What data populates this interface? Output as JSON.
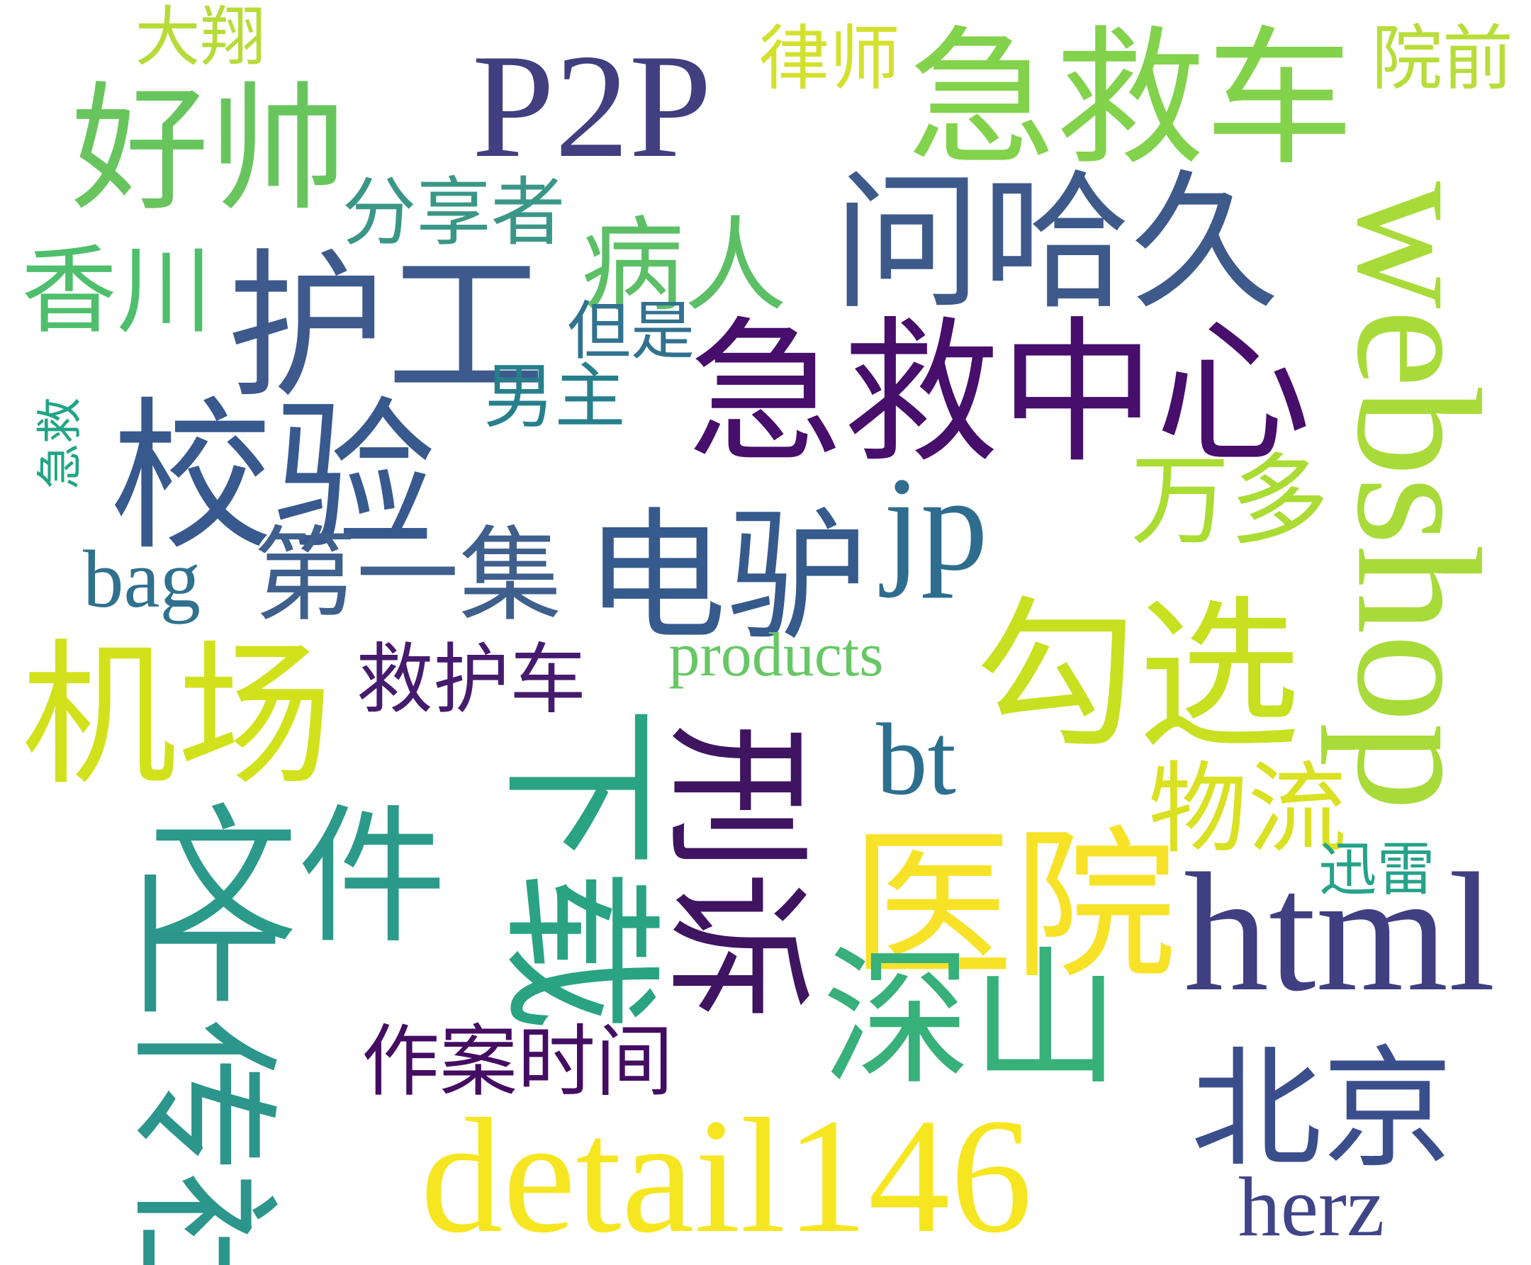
{
  "words": [
    {
      "text": "P2P",
      "color": "#413f7f"
    },
    {
      "text": "好帅",
      "color": "#68c55e"
    },
    {
      "text": "急救车",
      "color": "#82d24c"
    },
    {
      "text": "大翔",
      "color": "#b7db38"
    },
    {
      "text": "律师",
      "color": "#d3e12c"
    },
    {
      "text": "院前",
      "color": "#b8dd3a"
    },
    {
      "text": "问哈久",
      "color": "#3d5a8a"
    },
    {
      "text": "webshop",
      "color": "#a8db3a"
    },
    {
      "text": "分享者",
      "color": "#3a9787"
    },
    {
      "text": "香川",
      "color": "#4ebf6c"
    },
    {
      "text": "护工",
      "color": "#3e5a8c"
    },
    {
      "text": "病人",
      "color": "#5cbf66"
    },
    {
      "text": "但是",
      "color": "#31728f"
    },
    {
      "text": "急救中心",
      "color": "#470e6b"
    },
    {
      "text": "男主",
      "color": "#277f8c"
    },
    {
      "text": "校验",
      "color": "#38598e"
    },
    {
      "text": "急救",
      "color": "#21a586"
    },
    {
      "text": "万多",
      "color": "#aadc34"
    },
    {
      "text": "电驴",
      "color": "#365a8c"
    },
    {
      "text": "jp",
      "color": "#2f6d8e"
    },
    {
      "text": "bag",
      "color": "#2f718e"
    },
    {
      "text": "第一集",
      "color": "#3f5f8c"
    },
    {
      "text": "勾选",
      "color": "#c7e020"
    },
    {
      "text": "products",
      "color": "#67c765"
    },
    {
      "text": "机场",
      "color": "#d1e21c"
    },
    {
      "text": "救护车",
      "color": "#461a6c"
    },
    {
      "text": "bt",
      "color": "#2d6f8e"
    },
    {
      "text": "下载",
      "color": "#2aa383"
    },
    {
      "text": "刑诉",
      "color": "#3f1461"
    },
    {
      "text": "物流",
      "color": "#d9e122"
    },
    {
      "text": "文件",
      "color": "#2b9a8a"
    },
    {
      "text": "医院",
      "color": "#f7e228"
    },
    {
      "text": "html",
      "color": "#3f3f81"
    },
    {
      "text": "迅雷",
      "color": "#26a28a"
    },
    {
      "text": "上传社",
      "color": "#2c958c"
    },
    {
      "text": "深山",
      "color": "#37b07a"
    },
    {
      "text": "作案时间",
      "color": "#440d62"
    },
    {
      "text": "北京",
      "color": "#3b4e8c"
    },
    {
      "text": "detail146",
      "color": "#f6e621"
    },
    {
      "text": "herz",
      "color": "#404588"
    }
  ]
}
